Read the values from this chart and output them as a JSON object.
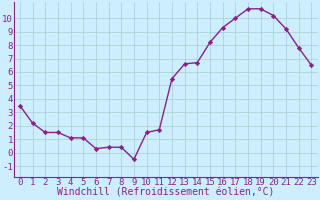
{
  "x": [
    0,
    1,
    2,
    3,
    4,
    5,
    6,
    7,
    8,
    9,
    10,
    11,
    12,
    13,
    14,
    15,
    16,
    17,
    18,
    19,
    20,
    21,
    22,
    23
  ],
  "y": [
    3.5,
    2.2,
    1.5,
    1.5,
    1.1,
    1.1,
    0.3,
    0.4,
    0.4,
    -0.5,
    1.5,
    1.7,
    5.5,
    6.6,
    6.7,
    8.2,
    9.3,
    10.0,
    10.7,
    10.7,
    10.2,
    9.2,
    7.8,
    6.5
  ],
  "line_color": "#882288",
  "marker": "D",
  "marker_size": 2.2,
  "bg_color": "#cceeff",
  "grid_color": "#aacccc",
  "xlabel": "Windchill (Refroidissement éolien,°C)",
  "ylabel": "",
  "title": "",
  "xlim": [
    -0.5,
    23.5
  ],
  "ylim": [
    -1.8,
    11.2
  ],
  "yticks": [
    -1,
    0,
    1,
    2,
    3,
    4,
    5,
    6,
    7,
    8,
    9,
    10
  ],
  "xticks": [
    0,
    1,
    2,
    3,
    4,
    5,
    6,
    7,
    8,
    9,
    10,
    11,
    12,
    13,
    14,
    15,
    16,
    17,
    18,
    19,
    20,
    21,
    22,
    23
  ],
  "xlabel_fontsize": 7,
  "ytick_fontsize": 6.5,
  "xtick_fontsize": 6.5,
  "line_width": 1.0
}
